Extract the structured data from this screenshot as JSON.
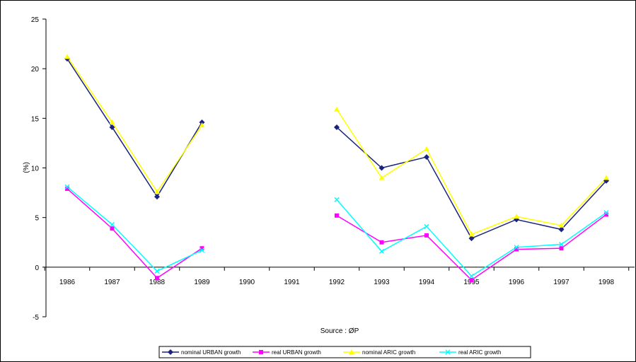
{
  "chart_data": {
    "type": "line",
    "title": "",
    "xlabel": "",
    "ylabel": "(%)",
    "source_note": "Source : ØP",
    "categories": [
      "1986",
      "1987",
      "1988",
      "1989",
      "1990",
      "1991",
      "1992",
      "1993",
      "1994",
      "1995",
      "1996",
      "1997",
      "1998"
    ],
    "ylim": [
      -5,
      25
    ],
    "yticks": [
      "-5",
      "0",
      "5",
      "10",
      "15",
      "20",
      "25"
    ],
    "grid": false,
    "legend_position": "bottom",
    "series": [
      {
        "name": "nominal URBAN growth",
        "color": "#1a237e",
        "marker": "diamond",
        "values": [
          21.0,
          14.1,
          7.1,
          14.6,
          null,
          null,
          14.1,
          10.0,
          11.1,
          2.9,
          4.8,
          3.8,
          8.7
        ]
      },
      {
        "name": "real URBAN growth",
        "color": "#ff00ff",
        "marker": "square",
        "values": [
          7.9,
          3.9,
          -1.1,
          1.9,
          null,
          null,
          5.2,
          2.5,
          3.2,
          -1.3,
          1.8,
          1.9,
          5.3
        ]
      },
      {
        "name": "nominal ARIC growth",
        "color": "#ffff00",
        "marker": "triangle",
        "values": [
          21.2,
          14.6,
          7.6,
          14.3,
          null,
          null,
          15.9,
          9.0,
          11.9,
          3.3,
          5.1,
          4.2,
          9.0
        ]
      },
      {
        "name": "real ARIC growth",
        "color": "#00ffff",
        "marker": "x",
        "values": [
          8.1,
          4.3,
          -0.4,
          1.7,
          null,
          null,
          6.8,
          1.6,
          4.1,
          -0.9,
          2.0,
          2.3,
          5.5
        ]
      }
    ]
  }
}
